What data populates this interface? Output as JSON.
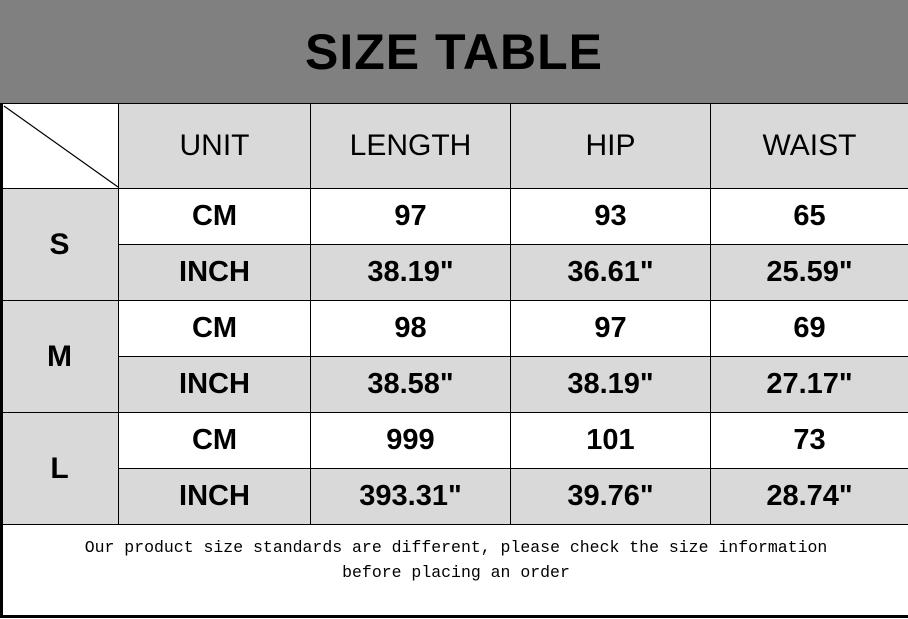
{
  "title": "SIZE TABLE",
  "headers": [
    "UNIT",
    "LENGTH",
    "HIP",
    "WAIST"
  ],
  "sizes": [
    {
      "size": "S",
      "rows": [
        {
          "unit": "CM",
          "values": [
            "97",
            "93",
            "65"
          ]
        },
        {
          "unit": "INCH",
          "values": [
            "38.19\"",
            "36.61\"",
            "25.59\""
          ]
        }
      ]
    },
    {
      "size": "M",
      "rows": [
        {
          "unit": "CM",
          "values": [
            "98",
            "97",
            "69"
          ]
        },
        {
          "unit": "INCH",
          "values": [
            "38.58\"",
            "38.19\"",
            "27.17\""
          ]
        }
      ]
    },
    {
      "size": "L",
      "rows": [
        {
          "unit": "CM",
          "values": [
            "999",
            "101",
            "73"
          ]
        },
        {
          "unit": "INCH",
          "values": [
            "393.31\"",
            "39.76\"",
            "28.74\""
          ]
        }
      ]
    }
  ],
  "footer": {
    "line1": "Our product size standards are different, please check the size information",
    "line2": "before placing an order"
  },
  "colors": {
    "title_bg": "#808080",
    "header_bg": "#d9d9d9",
    "border": "#000000"
  }
}
